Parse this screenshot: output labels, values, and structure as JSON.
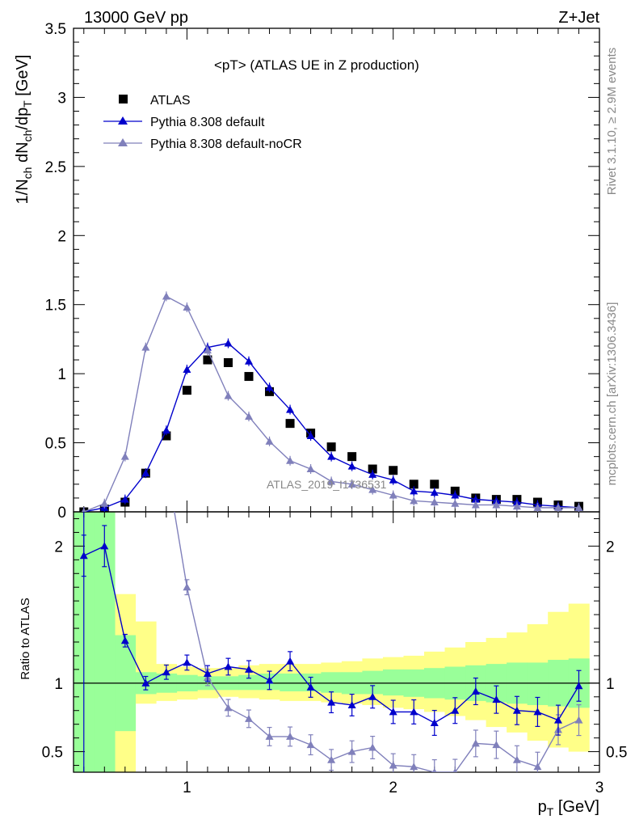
{
  "header": {
    "left": "13000 GeV pp",
    "right": "Z+Jet"
  },
  "side_labels": {
    "rivet": "Rivet 3.1.10, ≥ 2.9M events",
    "mcplots": "mcplots.cern.ch [arXiv:1306.3436]"
  },
  "watermark": "ATLAS_2019_I1736531",
  "chart_data": {
    "type": "line",
    "title": "<pT> (ATLAS UE in Z production)",
    "xlabel": "p_T [GeV]",
    "ylabel": "1/N_ch dN_ch/dp_T [GeV]",
    "ratio_ylabel": "Ratio to ATLAS",
    "xlim": [
      0.45,
      3.0
    ],
    "ylim": [
      0,
      3.5
    ],
    "ratio_ylim": [
      0.35,
      2.25
    ],
    "legend_position": "top-left",
    "x_ticks": [
      "1",
      "2",
      "3"
    ],
    "y_ticks": [
      "0",
      "0.5",
      "1",
      "1.5",
      "2",
      "2.5",
      "3",
      "3.5"
    ],
    "ratio_y_ticks": [
      "0.5",
      "1",
      "2"
    ],
    "x": [
      0.5,
      0.6,
      0.7,
      0.8,
      0.9,
      1.0,
      1.1,
      1.2,
      1.3,
      1.4,
      1.5,
      1.6,
      1.7,
      1.8,
      1.9,
      2.0,
      2.1,
      2.2,
      2.3,
      2.4,
      2.5,
      2.6,
      2.7,
      2.8,
      2.9
    ],
    "series": [
      {
        "name": "ATLAS",
        "color": "#000000",
        "marker": "square",
        "values": [
          0.0,
          0.02,
          0.07,
          0.28,
          0.55,
          0.88,
          1.1,
          1.08,
          0.98,
          0.87,
          0.64,
          0.57,
          0.47,
          0.4,
          0.31,
          0.3,
          0.2,
          0.2,
          0.15,
          0.1,
          0.09,
          0.09,
          0.07,
          0.05,
          0.04
        ]
      },
      {
        "name": "Pythia 8.308 default",
        "color": "#0000cc",
        "marker": "triangle",
        "values": [
          0.0,
          0.03,
          0.09,
          0.28,
          0.59,
          1.03,
          1.19,
          1.22,
          1.09,
          0.9,
          0.74,
          0.55,
          0.4,
          0.33,
          0.27,
          0.23,
          0.15,
          0.14,
          0.12,
          0.09,
          0.08,
          0.07,
          0.05,
          0.04,
          0.03
        ]
      },
      {
        "name": "Pythia 8.308 default-noCR",
        "color": "#8080bb",
        "marker": "triangle",
        "values": [
          0.0,
          0.06,
          0.4,
          1.19,
          1.56,
          1.48,
          1.17,
          0.84,
          0.69,
          0.51,
          0.37,
          0.31,
          0.22,
          0.2,
          0.16,
          0.12,
          0.08,
          0.07,
          0.06,
          0.05,
          0.05,
          0.04,
          0.03,
          0.03,
          0.03
        ]
      }
    ],
    "ratio": {
      "x": [
        0.5,
        0.6,
        0.7,
        0.8,
        0.9,
        1.0,
        1.1,
        1.2,
        1.3,
        1.4,
        1.5,
        1.6,
        1.7,
        1.8,
        1.9,
        2.0,
        2.1,
        2.2,
        2.3,
        2.4,
        2.5,
        2.6,
        2.7,
        2.8,
        2.9
      ],
      "default": [
        1.93,
        2.0,
        1.31,
        1.0,
        1.08,
        1.15,
        1.07,
        1.12,
        1.1,
        1.02,
        1.16,
        0.97,
        0.86,
        0.84,
        0.9,
        0.79,
        0.79,
        0.71,
        0.8,
        0.94,
        0.88,
        0.8,
        0.79,
        0.73,
        0.98
      ],
      "noCR": [
        null,
        null,
        null,
        null,
        null,
        1.7,
        1.04,
        0.82,
        0.74,
        0.61,
        0.61,
        0.55,
        0.44,
        0.5,
        0.53,
        0.4,
        0.39,
        0.28,
        0.35,
        0.56,
        0.55,
        0.44,
        0.39,
        0.66,
        0.73
      ],
      "band_green": [
        [
          0.35,
          2.25
        ],
        [
          0.35,
          2.25
        ],
        [
          0.65,
          1.35
        ],
        [
          0.92,
          1.08
        ],
        [
          0.93,
          1.07
        ],
        [
          0.94,
          1.06
        ],
        [
          0.95,
          1.05
        ],
        [
          0.95,
          1.05
        ],
        [
          0.95,
          1.06
        ],
        [
          0.95,
          1.07
        ],
        [
          0.94,
          1.07
        ],
        [
          0.94,
          1.07
        ],
        [
          0.93,
          1.08
        ],
        [
          0.92,
          1.08
        ],
        [
          0.92,
          1.09
        ],
        [
          0.91,
          1.1
        ],
        [
          0.9,
          1.1
        ],
        [
          0.89,
          1.11
        ],
        [
          0.88,
          1.12
        ],
        [
          0.87,
          1.13
        ],
        [
          0.86,
          1.14
        ],
        [
          0.85,
          1.15
        ],
        [
          0.84,
          1.15
        ],
        [
          0.83,
          1.17
        ],
        [
          0.82,
          1.18
        ]
      ],
      "band_yellow": [
        [
          0.35,
          2.25
        ],
        [
          0.35,
          2.25
        ],
        [
          0.35,
          1.65
        ],
        [
          0.85,
          1.45
        ],
        [
          0.87,
          1.14
        ],
        [
          0.88,
          1.12
        ],
        [
          0.89,
          1.11
        ],
        [
          0.9,
          1.11
        ],
        [
          0.89,
          1.13
        ],
        [
          0.88,
          1.14
        ],
        [
          0.87,
          1.14
        ],
        [
          0.87,
          1.14
        ],
        [
          0.86,
          1.15
        ],
        [
          0.85,
          1.16
        ],
        [
          0.84,
          1.18
        ],
        [
          0.82,
          1.19
        ],
        [
          0.81,
          1.2
        ],
        [
          0.79,
          1.23
        ],
        [
          0.76,
          1.26
        ],
        [
          0.73,
          1.3
        ],
        [
          0.68,
          1.33
        ],
        [
          0.64,
          1.37
        ],
        [
          0.58,
          1.43
        ],
        [
          0.53,
          1.52
        ],
        [
          0.5,
          1.58
        ]
      ]
    }
  }
}
